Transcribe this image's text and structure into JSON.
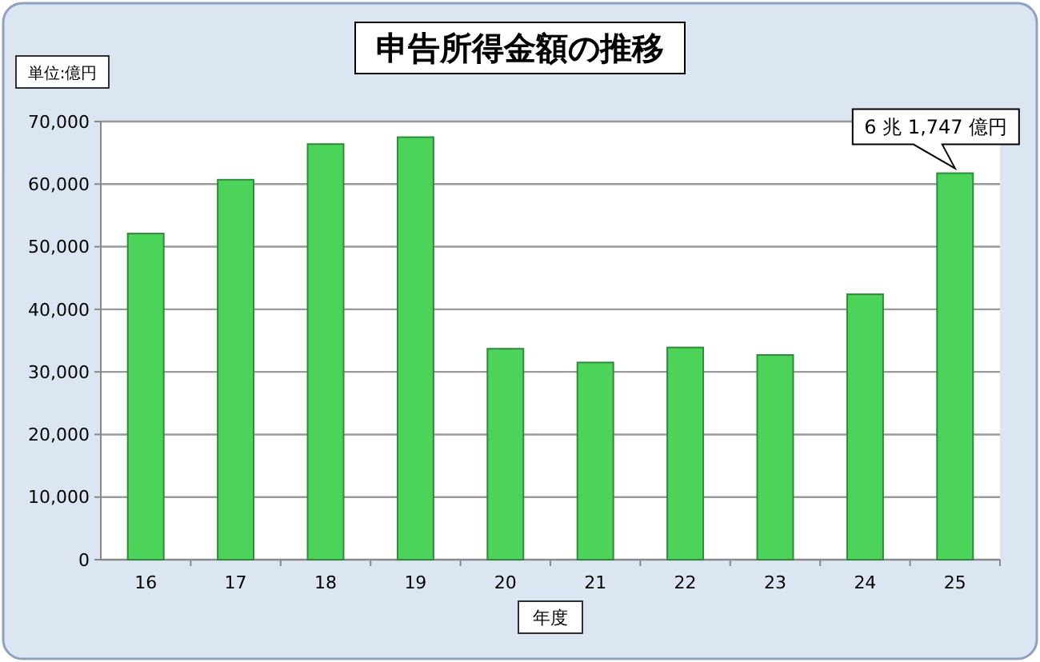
{
  "chart_data": {
    "type": "bar",
    "title": "申告所得金額の推移",
    "xlabel": "年度",
    "ylabel": "単位:億円",
    "categories": [
      "16",
      "17",
      "18",
      "19",
      "20",
      "21",
      "22",
      "23",
      "24",
      "25"
    ],
    "values": [
      52100,
      60700,
      66400,
      67500,
      33700,
      31500,
      33900,
      32700,
      42400,
      61747
    ],
    "color": "#4cd45a",
    "ylim": [
      0,
      70000
    ],
    "yticks": [
      {
        "value": 0,
        "label": "0"
      },
      {
        "value": 10000,
        "label": "10,000"
      },
      {
        "value": 20000,
        "label": "20,000"
      },
      {
        "value": 30000,
        "label": "30,000"
      },
      {
        "value": 40000,
        "label": "40,000"
      },
      {
        "value": 50000,
        "label": "50,000"
      },
      {
        "value": 60000,
        "label": "60,000"
      },
      {
        "value": 70000,
        "label": "70,000"
      }
    ],
    "grid": "y",
    "annotations": [
      {
        "text": "6 兆 1,747 億円",
        "x": "25",
        "y": 61747
      }
    ]
  }
}
